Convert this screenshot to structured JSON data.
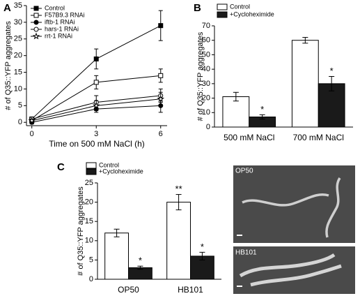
{
  "chart_data": [
    {
      "panel": "A",
      "type": "line",
      "x_label": "Time on 500 mM NaCl (h)",
      "y_label": "# of Q35::YFP aggregates",
      "x": [
        0,
        3,
        6
      ],
      "xlim": [
        -0.25,
        6.3
      ],
      "xticks": [
        0,
        3,
        6
      ],
      "ylim": [
        -1,
        35
      ],
      "yticks": [
        0,
        5,
        10,
        15,
        20,
        25,
        30,
        35
      ],
      "series": [
        {
          "name": "Control",
          "color": "#000000",
          "marker": "square",
          "values": [
            1,
            19,
            29
          ],
          "errors": [
            0.5,
            3,
            4.5
          ]
        },
        {
          "name": "F57B9.3 RNAi",
          "color": "#000000",
          "marker": "square-open",
          "values": [
            0.5,
            12,
            14
          ],
          "errors": [
            0.5,
            2,
            2
          ]
        },
        {
          "name": "iftb-1 RNAi",
          "color": "#000000",
          "marker": "circle",
          "values": [
            0,
            4,
            5
          ],
          "errors": [
            0.5,
            1,
            2
          ]
        },
        {
          "name": "hars-1 RNAi",
          "color": "#000000",
          "marker": "circle-open",
          "values": [
            1,
            6,
            8
          ],
          "errors": [
            0.5,
            2,
            2
          ]
        },
        {
          "name": "rrt-1 RNAi",
          "color": "#000000",
          "marker": "star",
          "values": [
            0.5,
            5,
            7
          ],
          "errors": [
            0.5,
            1.5,
            2
          ]
        }
      ]
    },
    {
      "panel": "B",
      "type": "bar",
      "y_label": "# of Q35::YFP aggregates",
      "categories": [
        "500 mM NaCl",
        "700 mM NaCl"
      ],
      "ylim": [
        0,
        70
      ],
      "yticks": [
        0,
        10,
        20,
        30,
        40,
        50,
        60,
        70
      ],
      "series": [
        {
          "name": "Control",
          "color": "#ffffff",
          "values": [
            21,
            60
          ],
          "errors": [
            3,
            2
          ],
          "annotations": [
            null,
            null
          ]
        },
        {
          "name": "+Cycloheximide",
          "color": "#1a1a1a",
          "values": [
            7,
            30
          ],
          "errors": [
            1.5,
            5
          ],
          "annotations": [
            "*",
            "*"
          ]
        }
      ]
    },
    {
      "panel": "C",
      "type": "bar",
      "y_label": "# of Q35::YFP aggregates",
      "categories": [
        "OP50",
        "HB101"
      ],
      "ylim": [
        0,
        25
      ],
      "yticks": [
        0,
        5,
        10,
        15,
        20,
        25
      ],
      "series": [
        {
          "name": "Control",
          "color": "#ffffff",
          "values": [
            12,
            20
          ],
          "errors": [
            1,
            2
          ],
          "annotations": [
            null,
            "**"
          ]
        },
        {
          "name": "+Cycloheximide",
          "color": "#1a1a1a",
          "values": [
            3,
            6
          ],
          "errors": [
            0.4,
            1
          ],
          "annotations": [
            "*",
            "*"
          ]
        }
      ]
    }
  ],
  "images": [
    {
      "label": "OP50"
    },
    {
      "label": "HB101"
    }
  ]
}
